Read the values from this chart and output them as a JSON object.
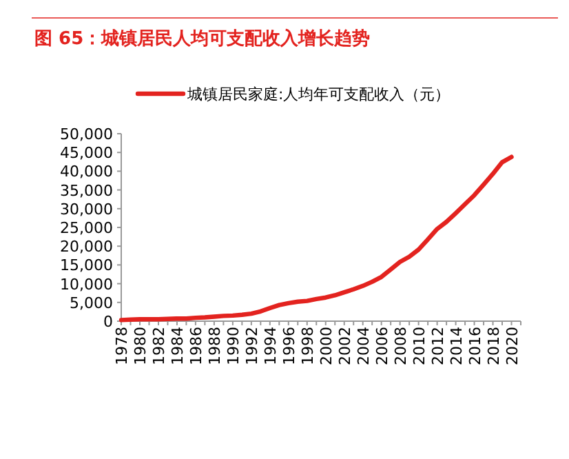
{
  "chart_data": {
    "type": "line",
    "title": "图 65：城镇居民人均可支配收入增长趋势",
    "categories": [
      "1978",
      null,
      "1980",
      null,
      "1982",
      null,
      "1984",
      null,
      "1986",
      null,
      "1988",
      null,
      "1990",
      null,
      "1992",
      null,
      "1994",
      null,
      "1996",
      null,
      "1998",
      null,
      "2000",
      null,
      "2002",
      null,
      "2004",
      null,
      "2006",
      null,
      "2008",
      null,
      "2010",
      null,
      "2012",
      null,
      "2014",
      null,
      "2016",
      null,
      "2018",
      null,
      "2020"
    ],
    "series": [
      {
        "name": "城镇居民家庭:人均年可支配收入（元）",
        "color": "#e3231f",
        "values": [
          300,
          400,
          500,
          500,
          500,
          600,
          700,
          700,
          900,
          1000,
          1200,
          1400,
          1500,
          1700,
          2000,
          2600,
          3500,
          4300,
          4800,
          5200,
          5400,
          5900,
          6300,
          6900,
          7700,
          8500,
          9400,
          10500,
          11800,
          13800,
          15800,
          17200,
          19100,
          21800,
          24600,
          26500,
          28800,
          31200,
          33600,
          36400,
          39300,
          42400,
          43800
        ]
      }
    ],
    "ylim": [
      0,
      50000
    ],
    "yticks": [
      {
        "value": 0,
        "label": "0"
      },
      {
        "value": 5000,
        "label": "5,000"
      },
      {
        "value": 10000,
        "label": "10,000"
      },
      {
        "value": 15000,
        "label": "15,000"
      },
      {
        "value": 20000,
        "label": "20,000"
      },
      {
        "value": 25000,
        "label": "25,000"
      },
      {
        "value": 30000,
        "label": "30,000"
      },
      {
        "value": 35000,
        "label": "35,000"
      },
      {
        "value": 40000,
        "label": "40,000"
      },
      {
        "value": 45000,
        "label": "45,000"
      },
      {
        "value": 50000,
        "label": "50,000"
      }
    ],
    "legend": "top",
    "grid": false,
    "marker": "none",
    "line_style": "solid"
  }
}
